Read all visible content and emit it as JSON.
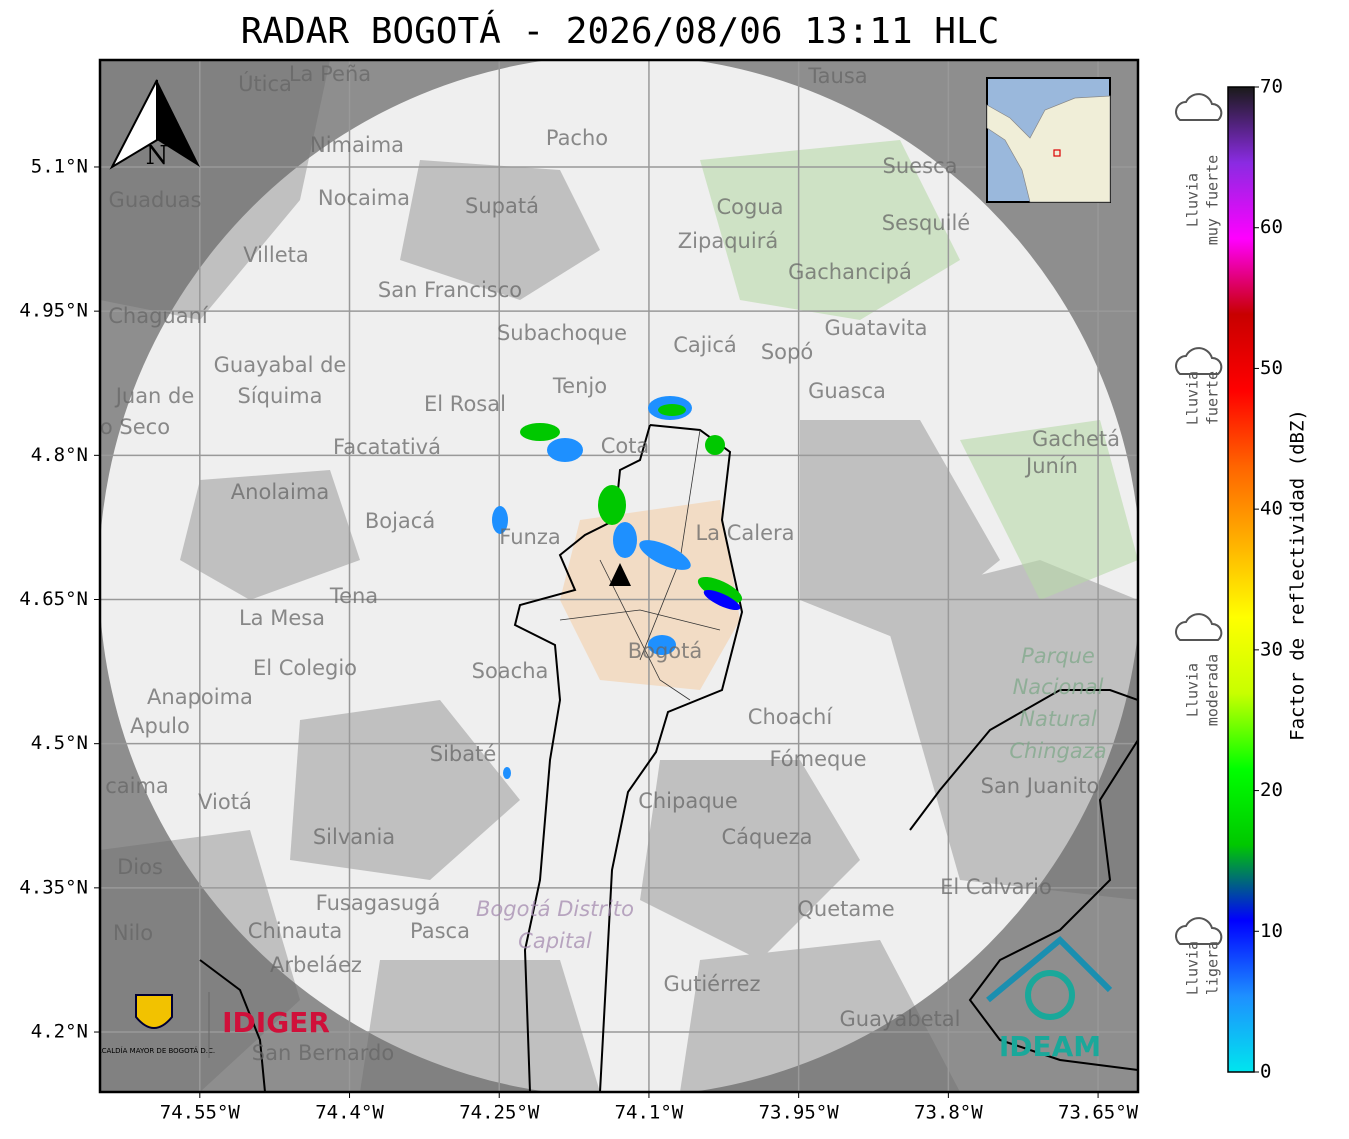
{
  "title": "RADAR BOGOTÁ - 2026/08/06 13:11 HLC",
  "map": {
    "lat_range": [
      4.1376,
      5.2113
    ],
    "lon_range": [
      -74.65,
      -73.61
    ],
    "lat_ticks": [
      {
        "value": 4.2,
        "label": "4.2°N"
      },
      {
        "value": 4.35,
        "label": "4.35°N"
      },
      {
        "value": 4.5,
        "label": "4.5°N"
      },
      {
        "value": 4.65,
        "label": "4.65°N"
      },
      {
        "value": 4.8,
        "label": "4.8°N"
      },
      {
        "value": 4.95,
        "label": "4.95°N"
      },
      {
        "value": 5.1,
        "label": "5.1°N"
      }
    ],
    "lon_ticks": [
      {
        "value": -74.55,
        "label": "74.55°W"
      },
      {
        "value": -74.4,
        "label": "74.4°W"
      },
      {
        "value": -74.25,
        "label": "74.25°W"
      },
      {
        "value": -74.1,
        "label": "74.1°W"
      },
      {
        "value": -73.95,
        "label": "73.95°W"
      },
      {
        "value": -73.8,
        "label": "73.8°W"
      },
      {
        "value": -73.65,
        "label": "73.65°W"
      }
    ],
    "grid": true,
    "places": [
      "La Peña",
      "Útica",
      "Tausa",
      "Pacho",
      "Nimaima",
      "Guaduas",
      "Nocaima",
      "Supatá",
      "Suesca",
      "Cogua",
      "Sesquilé",
      "Zipaquirá",
      "Villeta",
      "Gachancipá",
      "San Francisco",
      "Chaguaní",
      "Guatavita",
      "Subachoque",
      "Cajicá",
      "Sopó",
      "Guayabal de",
      "Síquima",
      "Juan de",
      "o Seco",
      "Tenjo",
      "Guasca",
      "El Rosal",
      "Facatativá",
      "Cota",
      "Gachetá",
      "Junín",
      "Anolaima",
      "Bojacá",
      "Funza",
      "La Calera",
      "Tena",
      "La Mesa",
      "Parque",
      "Nacional",
      "Natural",
      "Chingaza",
      "Bogotá",
      "El Colegio",
      "Soacha",
      "Anapoima",
      "Apulo",
      "Choachí",
      "Sibaté",
      "Fómeque",
      "San Juanito",
      "Viotá",
      "caima",
      "Chipaque",
      "Silvania",
      "Cáqueza",
      "Dios",
      "El Calvario",
      "Fusagasugá",
      "Bogotá Distrito",
      "Capital",
      "Quetame",
      "Nilo",
      "Chinauta",
      "Pasca",
      "Arbeláez",
      "Gutiérrez",
      "Guayabetal",
      "San Bernardo"
    ],
    "north": "N"
  },
  "colorbar": {
    "label": "Factor de reflectividad (dBZ)",
    "lim": [
      0,
      70
    ],
    "ticks": [
      0,
      10,
      20,
      30,
      40,
      50,
      60,
      70
    ],
    "colors": [
      "#00e5ee",
      "#1e90ff",
      "#0000ff",
      "#00c800",
      "#00ff00",
      "#c8ff00",
      "#ffff00",
      "#ffb000",
      "#ff6400",
      "#ff0000",
      "#c80000",
      "#ff00ff",
      "#8a2be2",
      "#1a1a1a"
    ]
  },
  "rain_categories": [
    [
      "Lluvia",
      "muy fuerte"
    ],
    [
      "Lluvia",
      "fuerte"
    ],
    [
      "Lluvia",
      "moderada"
    ],
    [
      "Lluvia",
      "ligera"
    ]
  ],
  "logos": {
    "alcaldia": "ALCALDÍA MAYOR DE BOGOTÁ D.C.",
    "idiger": "IDIGER",
    "ideam": "IDEAM"
  }
}
